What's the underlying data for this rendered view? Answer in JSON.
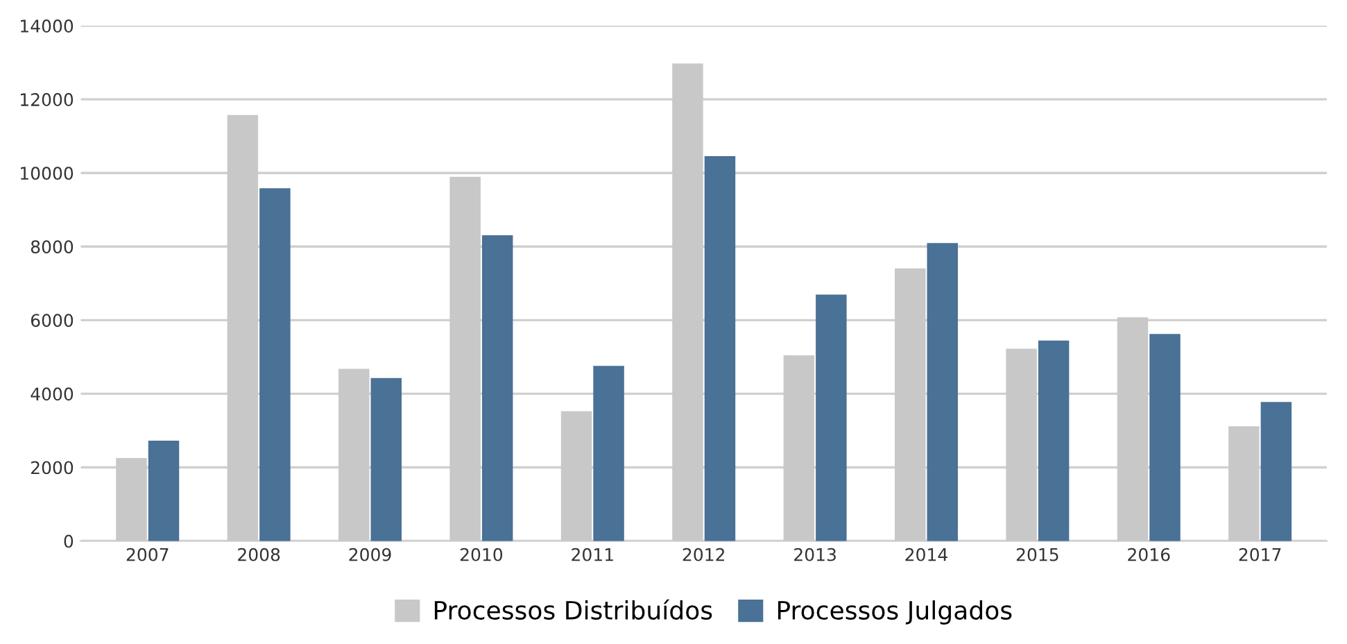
{
  "chart_data": {
    "type": "bar",
    "categories": [
      "2007",
      "2008",
      "2009",
      "2010",
      "2011",
      "2012",
      "2013",
      "2014",
      "2015",
      "2016",
      "2017"
    ],
    "series": [
      {
        "name": "Processos Distribuídos",
        "color": "#c8c8c8",
        "values": [
          2230,
          11550,
          4650,
          9870,
          3500,
          12950,
          5020,
          7380,
          5200,
          6050,
          3090
        ]
      },
      {
        "name": "Processos Julgados",
        "color": "#4a7196",
        "values": [
          2700,
          9560,
          4400,
          8280,
          4730,
          10430,
          6670,
          8070,
          5420,
          5600,
          3750
        ]
      }
    ],
    "ylim": [
      0,
      14000
    ],
    "yticks": [
      0,
      2000,
      4000,
      6000,
      8000,
      10000,
      12000,
      14000
    ],
    "grid": "y",
    "legend": "bottom"
  }
}
